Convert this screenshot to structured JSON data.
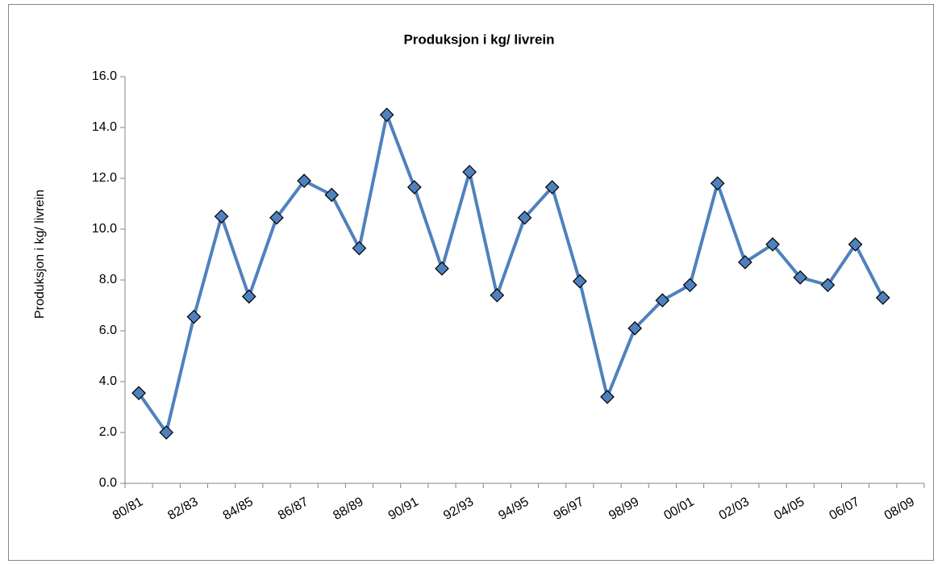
{
  "chart_data": {
    "type": "line",
    "title": "Produksjon i kg/ livrein",
    "ylabel": "Produksjon i kg/ livrein",
    "categories": [
      "80/81",
      null,
      "82/83",
      null,
      "84/85",
      null,
      "86/87",
      null,
      "88/89",
      null,
      "90/91",
      null,
      "92/93",
      null,
      "94/95",
      null,
      "96/97",
      null,
      "98/99",
      null,
      "00/01",
      null,
      "02/03",
      null,
      "04/05",
      null,
      "06/07",
      null,
      "08/09"
    ],
    "series": [
      {
        "name": "Produksjon i kg/ livrein",
        "color": "#4f81bd",
        "values": [
          3.55,
          2.0,
          6.55,
          10.5,
          7.35,
          10.45,
          11.9,
          11.35,
          9.25,
          14.5,
          11.65,
          8.45,
          12.25,
          7.4,
          10.45,
          11.65,
          7.95,
          3.4,
          6.1,
          7.2,
          7.8,
          11.8,
          8.7,
          9.4,
          8.1,
          7.8,
          9.4,
          7.3,
          null
        ]
      }
    ],
    "ylim": [
      0,
      16
    ],
    "yticks": [
      {
        "value": 0,
        "label": "0.0"
      },
      {
        "value": 2,
        "label": "2.0"
      },
      {
        "value": 4,
        "label": "4.0"
      },
      {
        "value": 6,
        "label": "6.0"
      },
      {
        "value": 8,
        "label": "8.0"
      },
      {
        "value": 10,
        "label": "10.0"
      },
      {
        "value": 12,
        "label": "12.0"
      },
      {
        "value": 14,
        "label": "14.0"
      },
      {
        "value": 16,
        "label": "16.0"
      }
    ],
    "grid": false
  }
}
